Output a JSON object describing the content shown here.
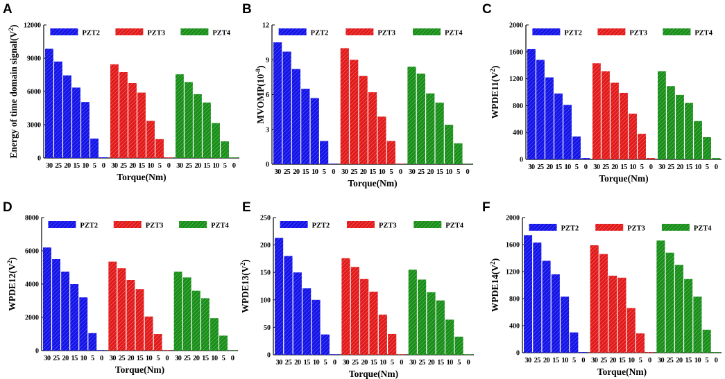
{
  "colors": {
    "PZT2": "#1414e6",
    "PZT3": "#e01a1a",
    "PZT4": "#1a8c1a"
  },
  "chart_data": [
    {
      "panel": "A",
      "type": "bar",
      "ylabel": "Energy of time domain signal(V",
      "ylabel_sup": "2",
      "ylabel_tail": ")",
      "xlabel": "Torque(Nm)",
      "ylim": [
        0,
        12000
      ],
      "yticks": [
        0,
        3000,
        6000,
        9000,
        12000
      ],
      "categories": [
        "30",
        "25",
        "20",
        "15",
        "10",
        "5",
        "0"
      ],
      "series": [
        {
          "name": "PZT2",
          "values": [
            9850,
            8700,
            7450,
            6350,
            5050,
            1750,
            60
          ]
        },
        {
          "name": "PZT3",
          "values": [
            8450,
            7750,
            6750,
            5900,
            3350,
            1700,
            40
          ]
        },
        {
          "name": "PZT4",
          "values": [
            7550,
            6850,
            5750,
            5000,
            3150,
            1500,
            40
          ]
        }
      ]
    },
    {
      "panel": "B",
      "type": "bar",
      "ylabel": "MVOMP(10",
      "ylabel_sup": "-8",
      "ylabel_tail": ")",
      "xlabel": "Torque(Nm)",
      "ylim": [
        0,
        12
      ],
      "yticks": [
        0,
        3,
        6,
        9,
        12
      ],
      "categories": [
        "30",
        "25",
        "20",
        "15",
        "10",
        "5",
        "0"
      ],
      "series": [
        {
          "name": "PZT2",
          "values": [
            10.5,
            9.7,
            8.2,
            6.5,
            5.7,
            2.0,
            0.05
          ]
        },
        {
          "name": "PZT3",
          "values": [
            10.0,
            9.0,
            7.6,
            6.2,
            4.1,
            2.0,
            0.05
          ]
        },
        {
          "name": "PZT4",
          "values": [
            8.4,
            7.8,
            6.1,
            5.3,
            3.4,
            1.8,
            0.05
          ]
        }
      ]
    },
    {
      "panel": "C",
      "type": "bar",
      "ylabel": "WPDE11(V",
      "ylabel_sup": "2",
      "ylabel_tail": ")",
      "xlabel": "Torque(Nm)",
      "ylim": [
        0,
        2000
      ],
      "yticks": [
        0,
        400,
        800,
        1200,
        1600,
        2000
      ],
      "categories": [
        "30",
        "25",
        "20",
        "15",
        "10",
        "5",
        "0"
      ],
      "series": [
        {
          "name": "PZT2",
          "values": [
            1640,
            1480,
            1220,
            980,
            810,
            340,
            20
          ]
        },
        {
          "name": "PZT3",
          "values": [
            1430,
            1310,
            1140,
            990,
            680,
            380,
            20
          ]
        },
        {
          "name": "PZT4",
          "values": [
            1310,
            1090,
            960,
            840,
            570,
            330,
            20
          ]
        }
      ]
    },
    {
      "panel": "D",
      "type": "bar",
      "ylabel": "WPDE12(V",
      "ylabel_sup": "2",
      "ylabel_tail": ")",
      "xlabel": "Torque(Nm)",
      "ylim": [
        0,
        8000
      ],
      "yticks": [
        0,
        2000,
        4000,
        6000,
        8000
      ],
      "categories": [
        "30",
        "25",
        "20",
        "15",
        "10",
        "5",
        "0"
      ],
      "series": [
        {
          "name": "PZT2",
          "values": [
            6200,
            5500,
            4750,
            4000,
            3200,
            1050,
            30
          ]
        },
        {
          "name": "PZT3",
          "values": [
            5350,
            4950,
            4250,
            3700,
            2050,
            1000,
            30
          ]
        },
        {
          "name": "PZT4",
          "values": [
            4750,
            4400,
            3600,
            3150,
            1950,
            900,
            30
          ]
        }
      ]
    },
    {
      "panel": "E",
      "type": "bar",
      "ylabel": "WPDE13(V",
      "ylabel_sup": "2",
      "ylabel_tail": ")",
      "xlabel": "Torque(Nm)",
      "ylim": [
        0,
        250
      ],
      "yticks": [
        0,
        50,
        100,
        150,
        200,
        250
      ],
      "categories": [
        "30",
        "25",
        "20",
        "15",
        "10",
        "5",
        "0"
      ],
      "series": [
        {
          "name": "PZT2",
          "values": [
            213,
            180,
            150,
            121,
            100,
            37,
            1
          ]
        },
        {
          "name": "PZT3",
          "values": [
            176,
            160,
            138,
            115,
            73,
            38,
            1
          ]
        },
        {
          "name": "PZT4",
          "values": [
            155,
            137,
            114,
            99,
            64,
            33,
            1
          ]
        }
      ]
    },
    {
      "panel": "F",
      "type": "bar",
      "ylabel": "WPDE14(V",
      "ylabel_sup": "2",
      "ylabel_tail": ")",
      "xlabel": "Torque(Nm)",
      "ylim": [
        0,
        2000
      ],
      "yticks": [
        0,
        400,
        800,
        1200,
        1600,
        2000
      ],
      "categories": [
        "30",
        "25",
        "20",
        "15",
        "10",
        "5",
        "0"
      ],
      "series": [
        {
          "name": "PZT2",
          "values": [
            1740,
            1630,
            1360,
            1160,
            830,
            300,
            10
          ]
        },
        {
          "name": "PZT3",
          "values": [
            1590,
            1460,
            1140,
            1110,
            660,
            285,
            10
          ]
        },
        {
          "name": "PZT4",
          "values": [
            1660,
            1480,
            1300,
            1090,
            830,
            340,
            10
          ]
        }
      ]
    }
  ]
}
